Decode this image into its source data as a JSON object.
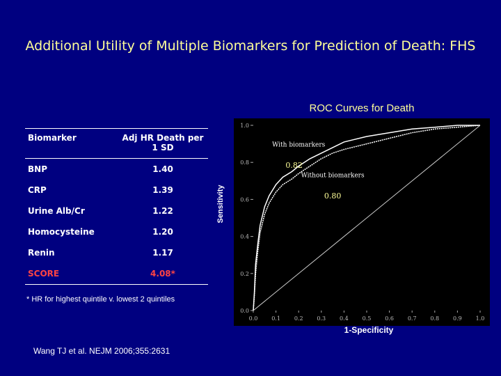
{
  "slide": {
    "title": "Additional Utility of Multiple Biomarkers for Prediction of Death: FHS",
    "footnote": "* HR for highest quintile v. lowest 2 quintiles",
    "citation": "Wang TJ et al. NEJM 2006;355:2631"
  },
  "table": {
    "headers": [
      "Biomarker",
      "Adj HR Death per 1 SD"
    ],
    "rows": [
      {
        "biomarker": "BNP",
        "hr": "1.40"
      },
      {
        "biomarker": "CRP",
        "hr": "1.39"
      },
      {
        "biomarker": "Urine Alb/Cr",
        "hr": "1.22"
      },
      {
        "biomarker": "Homocysteine",
        "hr": "1.20"
      },
      {
        "biomarker": "Renin",
        "hr": "1.17"
      },
      {
        "biomarker": "SCORE",
        "hr": "4.08*"
      }
    ]
  },
  "chart_data": {
    "type": "line",
    "title": "ROC Curves for Death",
    "xlabel": "1-Specificity",
    "ylabel": "Sensitivity",
    "xlim": [
      0,
      1
    ],
    "ylim": [
      0,
      1
    ],
    "x_ticks": [
      "0.0",
      "0.1",
      "0.2",
      "0.3",
      "0.4",
      "0.5",
      "0.6",
      "0.7",
      "0.8",
      "0.9",
      "1.0"
    ],
    "y_ticks": [
      "0.0",
      "0.2",
      "0.4",
      "0.6",
      "0.8",
      "1.0"
    ],
    "series": [
      {
        "name": "With biomarkers",
        "auc_label": "0.82",
        "color": "#ffffff",
        "x": [
          0,
          0.005,
          0.01,
          0.02,
          0.03,
          0.05,
          0.07,
          0.1,
          0.13,
          0.17,
          0.2,
          0.25,
          0.3,
          0.35,
          0.4,
          0.5,
          0.6,
          0.7,
          0.8,
          0.9,
          1.0
        ],
        "y": [
          0,
          0.1,
          0.25,
          0.36,
          0.46,
          0.56,
          0.62,
          0.68,
          0.72,
          0.75,
          0.78,
          0.82,
          0.85,
          0.88,
          0.91,
          0.94,
          0.96,
          0.98,
          0.99,
          1.0,
          1.0
        ]
      },
      {
        "name": "Without biomarkers",
        "auc_label": "0.80",
        "color": "#ffffff",
        "x": [
          0,
          0.005,
          0.01,
          0.02,
          0.03,
          0.05,
          0.07,
          0.1,
          0.13,
          0.17,
          0.2,
          0.25,
          0.3,
          0.35,
          0.4,
          0.5,
          0.6,
          0.7,
          0.8,
          0.9,
          1.0
        ],
        "y": [
          0,
          0.08,
          0.2,
          0.32,
          0.42,
          0.52,
          0.58,
          0.64,
          0.68,
          0.71,
          0.74,
          0.78,
          0.82,
          0.85,
          0.87,
          0.9,
          0.93,
          0.96,
          0.98,
          0.99,
          1.0
        ]
      },
      {
        "name": "",
        "color": "#cccccc",
        "x": [
          0,
          1
        ],
        "y": [
          0,
          1
        ]
      }
    ],
    "annotations": [
      {
        "text": "With biomarkers",
        "color": "#ffffff"
      },
      {
        "text": "Without biomarkers",
        "color": "#ffffff"
      },
      {
        "text": "0.82",
        "color": "#ffff99"
      },
      {
        "text": "0.80",
        "color": "#ffff99"
      }
    ],
    "background": "#000000"
  }
}
